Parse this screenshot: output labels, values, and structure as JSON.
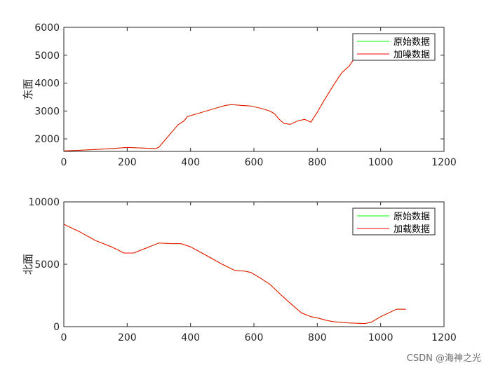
{
  "chart_data": [
    {
      "type": "line",
      "title": "",
      "xlabel": "",
      "ylabel": "东面",
      "xlim": [
        0,
        1200
      ],
      "ylim": [
        1550,
        6000
      ],
      "xticks": [
        0,
        200,
        400,
        600,
        800,
        1000,
        1200
      ],
      "yticks": [
        2000,
        3000,
        4000,
        5000,
        6000
      ],
      "legend_position": "top-right",
      "series": [
        {
          "name": "原始数据",
          "color": "#00ff00",
          "x": [
            0,
            50,
            100,
            150,
            200,
            250,
            290,
            300,
            330,
            360,
            380,
            390,
            420,
            450,
            480,
            510,
            530,
            560,
            590,
            620,
            650,
            665,
            680,
            695,
            715,
            740,
            760,
            780,
            800,
            820,
            850,
            870,
            880,
            900,
            915,
            930
          ],
          "y": [
            1570,
            1590,
            1620,
            1650,
            1690,
            1670,
            1650,
            1700,
            2100,
            2500,
            2650,
            2800,
            2900,
            3000,
            3100,
            3200,
            3230,
            3200,
            3180,
            3100,
            3000,
            2900,
            2700,
            2550,
            2520,
            2650,
            2700,
            2600,
            2950,
            3350,
            3900,
            4250,
            4400,
            4600,
            4850,
            5050
          ]
        },
        {
          "name": "加噪数据",
          "color": "#ff0000",
          "x": [
            0,
            50,
            100,
            150,
            200,
            250,
            290,
            300,
            330,
            360,
            380,
            390,
            420,
            450,
            480,
            510,
            530,
            560,
            590,
            620,
            650,
            665,
            680,
            695,
            715,
            740,
            760,
            780,
            800,
            820,
            850,
            870,
            880,
            900,
            915,
            930
          ],
          "y": [
            1570,
            1590,
            1620,
            1650,
            1690,
            1670,
            1650,
            1700,
            2100,
            2500,
            2650,
            2800,
            2900,
            3000,
            3100,
            3200,
            3230,
            3200,
            3180,
            3100,
            3000,
            2900,
            2700,
            2550,
            2520,
            2650,
            2700,
            2600,
            2950,
            3350,
            3900,
            4250,
            4400,
            4600,
            4850,
            5050
          ]
        }
      ]
    },
    {
      "type": "line",
      "title": "",
      "xlabel": "",
      "ylabel": "北面",
      "xlim": [
        0,
        1200
      ],
      "ylim": [
        0,
        10000
      ],
      "xticks": [
        0,
        200,
        400,
        600,
        800,
        1000,
        1200
      ],
      "yticks": [
        0,
        5000,
        10000
      ],
      "legend_position": "top-right",
      "series": [
        {
          "name": "原始数据",
          "color": "#00ff00",
          "x": [
            0,
            50,
            100,
            150,
            190,
            220,
            260,
            300,
            340,
            370,
            400,
            450,
            500,
            540,
            570,
            590,
            620,
            650,
            700,
            750,
            780,
            800,
            830,
            850,
            900,
            950,
            970,
            1000,
            1050,
            1080
          ],
          "y": [
            8200,
            7600,
            6900,
            6400,
            5900,
            5900,
            6300,
            6700,
            6650,
            6650,
            6400,
            5700,
            5000,
            4500,
            4450,
            4350,
            3900,
            3400,
            2200,
            1100,
            800,
            700,
            500,
            400,
            300,
            250,
            350,
            800,
            1400,
            1400
          ]
        },
        {
          "name": "加载数据",
          "color": "#ff0000",
          "x": [
            0,
            50,
            100,
            150,
            190,
            220,
            260,
            300,
            340,
            370,
            400,
            450,
            500,
            540,
            570,
            590,
            620,
            650,
            700,
            750,
            780,
            800,
            830,
            850,
            900,
            950,
            970,
            1000,
            1050,
            1080
          ],
          "y": [
            8200,
            7600,
            6900,
            6400,
            5900,
            5900,
            6300,
            6700,
            6650,
            6650,
            6400,
            5700,
            5000,
            4500,
            4450,
            4350,
            3900,
            3400,
            2200,
            1100,
            800,
            700,
            500,
            400,
            300,
            250,
            350,
            800,
            1400,
            1400
          ]
        }
      ]
    }
  ],
  "watermark": "CSDN @海神之光"
}
